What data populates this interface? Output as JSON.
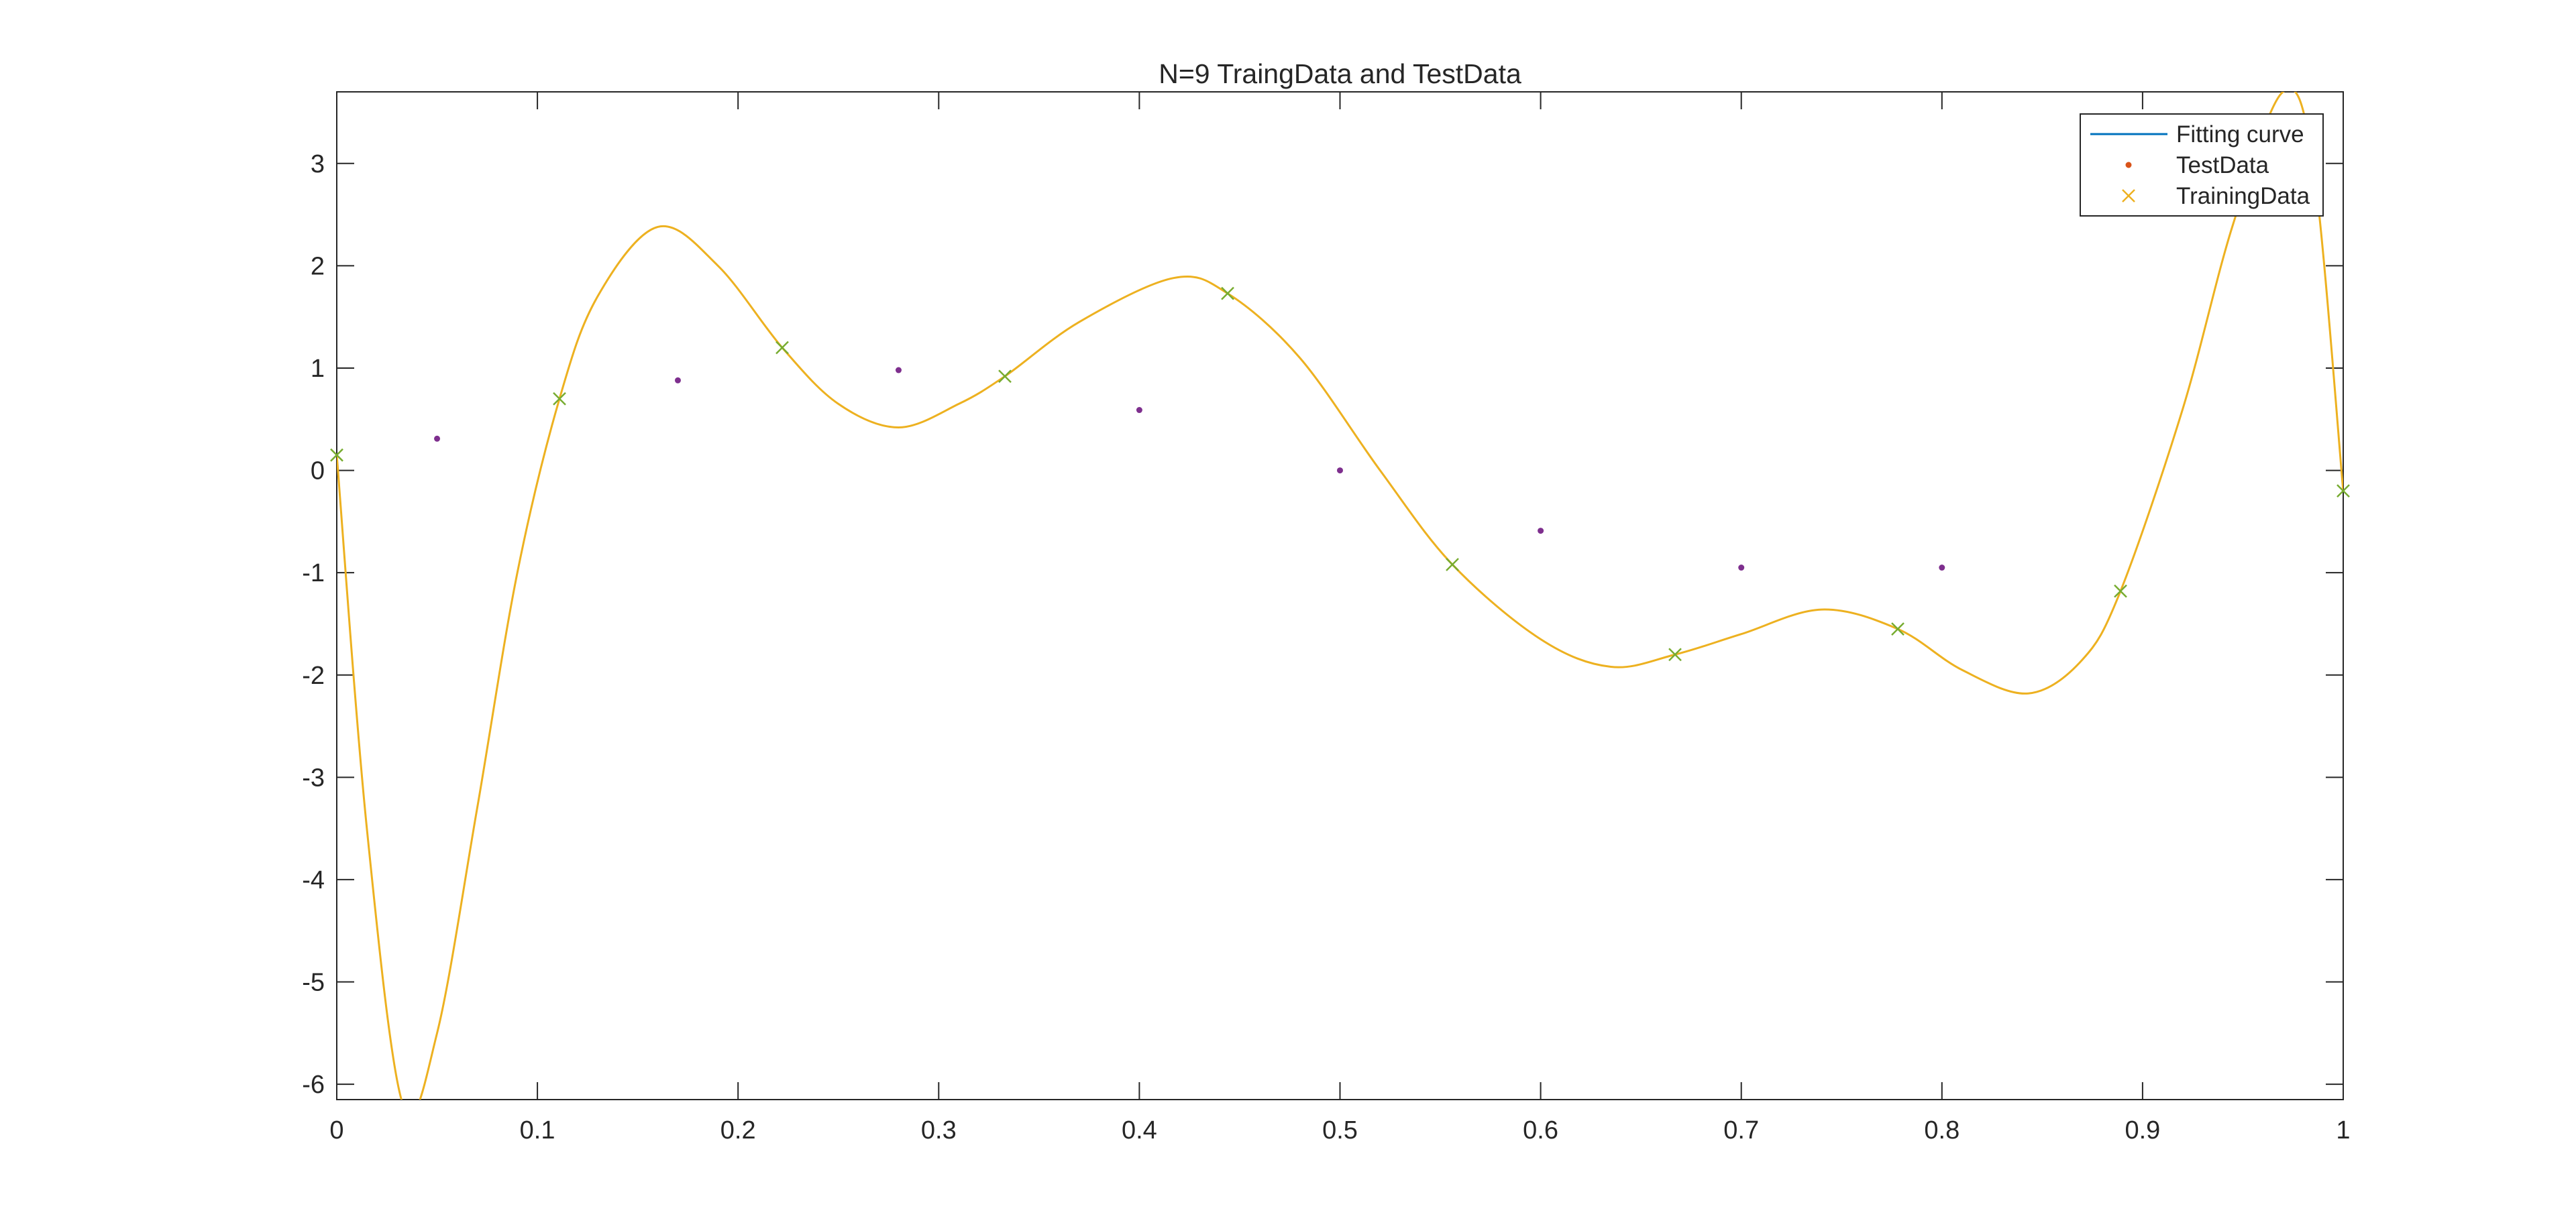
{
  "chart_data": {
    "type": "line",
    "title": "N=9 TraingData and TestData",
    "xlabel": "",
    "ylabel": "",
    "xlim": [
      0,
      1
    ],
    "ylim": [
      -6.15,
      3.7
    ],
    "x_ticks": [
      0,
      0.1,
      0.2,
      0.3,
      0.4,
      0.5,
      0.6,
      0.7,
      0.8,
      0.9,
      1
    ],
    "x_tick_labels": [
      "0",
      "0.1",
      "0.2",
      "0.3",
      "0.4",
      "0.5",
      "0.6",
      "0.7",
      "0.8",
      "0.9",
      "1"
    ],
    "y_ticks": [
      -6,
      -5,
      -4,
      -3,
      -2,
      -1,
      0,
      1,
      2,
      3
    ],
    "y_tick_labels": [
      "-6",
      "-5",
      "-4",
      "-3",
      "-2",
      "-1",
      "0",
      "1",
      "2",
      "3"
    ],
    "grid": false,
    "legend_position": "top-right",
    "legend": [
      {
        "label": "Fitting curve",
        "marker": "line",
        "color": "#0072BD"
      },
      {
        "label": "TestData",
        "marker": "dot",
        "color": "#D95319"
      },
      {
        "label": "TrainingData",
        "marker": "x",
        "color": "#EDB120"
      }
    ],
    "series": [
      {
        "name": "Fitting curve",
        "kind": "line",
        "color": "#EDB120",
        "x": [
          0,
          0.015,
          0.033,
          0.05,
          0.07,
          0.09,
          0.111,
          0.13,
          0.16,
          0.19,
          0.222,
          0.25,
          0.28,
          0.31,
          0.333,
          0.37,
          0.417,
          0.444,
          0.48,
          0.52,
          0.556,
          0.6,
          0.635,
          0.667,
          0.7,
          0.74,
          0.778,
          0.81,
          0.843,
          0.87,
          0.889,
          0.92,
          0.945,
          0.97,
          0.985,
          1
        ],
        "y": [
          0.15,
          -3.5,
          -6.2,
          -5.5,
          -3.3,
          -1.0,
          0.7,
          1.7,
          2.38,
          2.0,
          1.2,
          0.65,
          0.42,
          0.65,
          0.92,
          1.45,
          1.88,
          1.73,
          1.1,
          0.0,
          -0.92,
          -1.65,
          -1.92,
          -1.8,
          -1.6,
          -1.36,
          -1.55,
          -1.95,
          -2.18,
          -1.85,
          -1.18,
          0.6,
          2.4,
          3.7,
          3.0,
          -0.2
        ]
      },
      {
        "name": "TestData",
        "kind": "dot",
        "color": "#7E2F8E",
        "x": [
          0.05,
          0.17,
          0.28,
          0.4,
          0.5,
          0.6,
          0.7,
          0.8
        ],
        "y": [
          0.31,
          0.88,
          0.98,
          0.59,
          0.0,
          -0.59,
          -0.95,
          -0.95
        ]
      },
      {
        "name": "TrainingData",
        "kind": "x",
        "color": "#77AC30",
        "x": [
          0,
          0.111,
          0.222,
          0.333,
          0.444,
          0.556,
          0.667,
          0.778,
          0.889,
          1
        ],
        "y": [
          0.15,
          0.7,
          1.2,
          0.92,
          1.73,
          -0.92,
          -1.8,
          -1.55,
          -1.18,
          -0.2
        ]
      }
    ]
  }
}
